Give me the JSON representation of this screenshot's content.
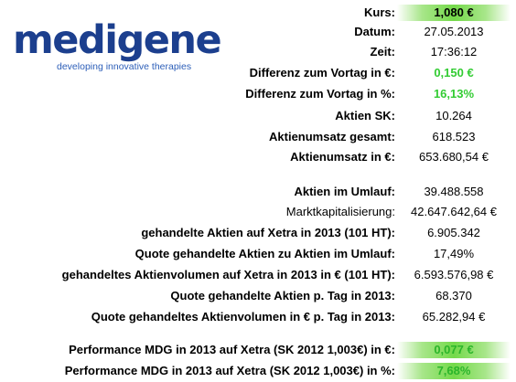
{
  "logo": {
    "word": "medigene",
    "tagline": "developing innovative therapies"
  },
  "colors": {
    "logo_blue": "#1c3f8e",
    "positive_green": "#33cc33",
    "highlight_green": "#74d94a"
  },
  "rows": [
    {
      "label": "Kurs:",
      "value": "1,080 €"
    },
    {
      "label": "Datum:",
      "value": "27.05.2013"
    },
    {
      "label": "Zeit:",
      "value": "17:36:12"
    },
    {
      "label": "Differenz zum Vortag in €:",
      "value": "0,150 €"
    },
    {
      "label": "Differenz zum Vortag in %:",
      "value": "16,13%"
    },
    {
      "label": "Aktien SK:",
      "value": "10.264"
    },
    {
      "label": "Aktienumsatz gesamt:",
      "value": "618.523"
    },
    {
      "label": "Aktienumsatz in €:",
      "value": "653.680,54 €"
    },
    {
      "label": "Aktien im Umlauf:",
      "value": "39.488.558"
    },
    {
      "label": "Marktkapitalisierung:",
      "value": "42.647.642,64 €"
    },
    {
      "label": "gehandelte Aktien auf Xetra in 2013 (101 HT):",
      "value": "6.905.342"
    },
    {
      "label": "Quote gehandelte Aktien zu Aktien im Umlauf:",
      "value": "17,49%"
    },
    {
      "label": "gehandeltes Aktienvolumen auf Xetra in 2013 in € (101 HT):",
      "value": "6.593.576,98 €"
    },
    {
      "label": "Quote gehandelte Aktien p. Tag in 2013:",
      "value": "68.370"
    },
    {
      "label": "Quote gehandeltes Aktienvolumen in € p. Tag in 2013:",
      "value": "65.282,94 €"
    },
    {
      "label": "Performance MDG in 2013 auf Xetra (SK 2012 1,003€) in €:",
      "value": "0,077 €"
    },
    {
      "label": "Performance MDG in 2013 auf Xetra (SK 2012 1,003€) in %:",
      "value": "7,68%"
    }
  ]
}
